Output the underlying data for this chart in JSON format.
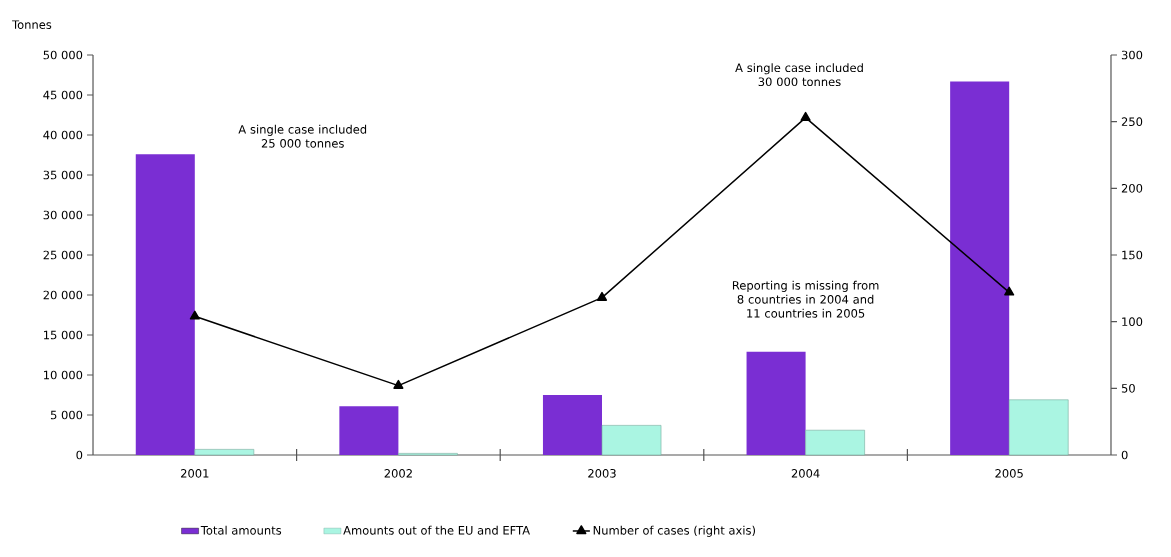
{
  "chart_data": {
    "type": "bar",
    "ylabel": "Tonnes",
    "categories": [
      "2001",
      "2002",
      "2003",
      "2004",
      "2005"
    ],
    "series": [
      {
        "name": "Total amounts",
        "color": "#7a2ed3",
        "values": [
          37600,
          6100,
          7500,
          12900,
          46700
        ]
      },
      {
        "name": "Amounts out of the EU and EFTA",
        "color": "#aaf5e2",
        "values": [
          700,
          200,
          3700,
          3100,
          6900
        ]
      },
      {
        "name": "Number of cases (right axis)",
        "type": "line",
        "axis": "y2",
        "color": "#000000",
        "marker": "triangle",
        "values": [
          104,
          52,
          118,
          253,
          122
        ]
      }
    ],
    "ylim": [
      0,
      50000
    ],
    "yticks": [
      {
        "value": 0,
        "label": "0"
      },
      {
        "value": 5000,
        "label": "5 000"
      },
      {
        "value": 10000,
        "label": "10 000"
      },
      {
        "value": 15000,
        "label": "15 000"
      },
      {
        "value": 20000,
        "label": "20 000"
      },
      {
        "value": 25000,
        "label": "25 000"
      },
      {
        "value": 30000,
        "label": "30 000"
      },
      {
        "value": 35000,
        "label": "35 000"
      },
      {
        "value": 40000,
        "label": "40 000"
      },
      {
        "value": 45000,
        "label": "45 000"
      },
      {
        "value": 50000,
        "label": "50 000"
      }
    ],
    "y2lim": [
      0,
      300
    ],
    "y2ticks": [
      0,
      50,
      100,
      150,
      200,
      250,
      300
    ],
    "legend": "bottom",
    "grid": false,
    "annotations": [
      "A single case included 25 000 tonnes",
      "A single case included 30 000 tonnes",
      "Reporting is missing from 8 countries in 2004 and 11 countries in 2005"
    ]
  }
}
